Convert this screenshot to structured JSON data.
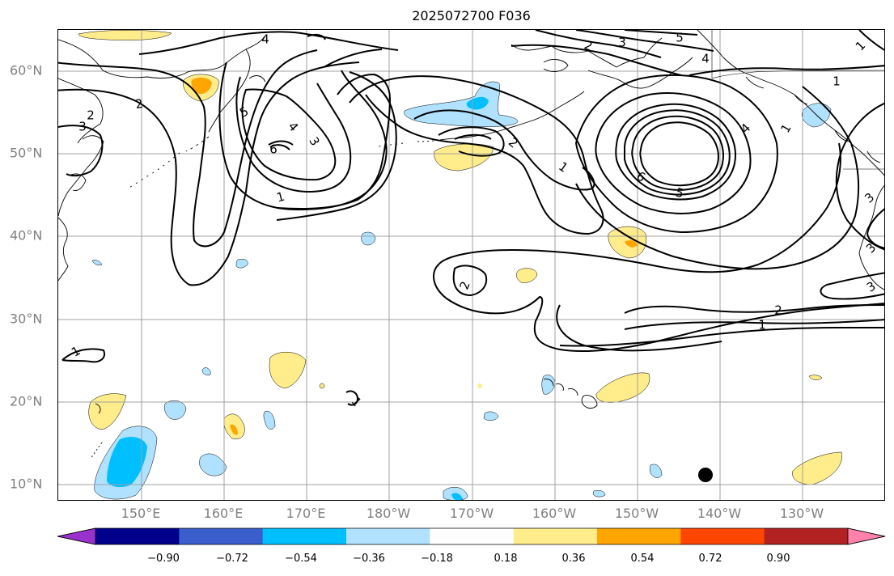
{
  "title": "2025072700 F036",
  "lat_labels": [
    "60°N",
    "50°N",
    "40°N",
    "30°N",
    "20°N",
    "10°N"
  ],
  "lon_labels": [
    "150°E",
    "160°E",
    "170°E",
    "180°W",
    "170°W",
    "160°W",
    "150°W",
    "140°W",
    "130°W"
  ],
  "colorbar": {
    "ticks": [
      "−0.90",
      "−0.72",
      "−0.54",
      "−0.36",
      "−0.18",
      "0.18",
      "0.36",
      "0.54",
      "0.72",
      "0.90"
    ],
    "colors": [
      "#9932cc",
      "#00008b",
      "#3a5fcd",
      "#00bfff",
      "#b0e2ff",
      "#ffffff",
      "#ffec8b",
      "#ffa500",
      "#ff4500",
      "#b22222",
      "#ff82ab"
    ]
  },
  "contour_labels": [
    "4",
    "2",
    "2",
    "5",
    "6",
    "4",
    "3",
    "1",
    "3",
    "2",
    "1",
    "2",
    "3",
    "5",
    "4",
    "1",
    "4",
    "1",
    "6",
    "5",
    "2",
    "1",
    "3",
    "3",
    "1",
    "1",
    "1",
    "2",
    "3"
  ],
  "colors": {
    "contour": "#000000",
    "grid": "#a0a0a0",
    "coast": "#000000",
    "label": "#808080"
  }
}
